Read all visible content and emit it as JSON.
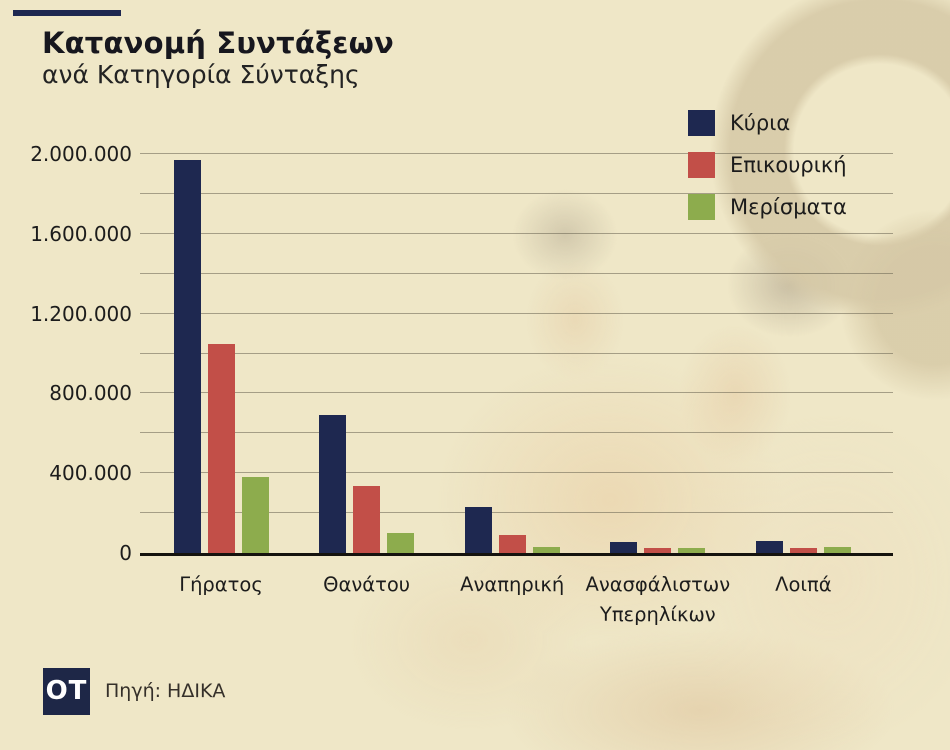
{
  "page": {
    "background_color": "#efe7c7",
    "accent_color": "#1e2850",
    "title": "Κατανομή Συντάξεων",
    "subtitle": "ανά Κατηγορία Σύνταξης"
  },
  "footer": {
    "logo_text": "OT",
    "logo_color": "#1e2747",
    "source_label": "Πηγή: ΗΔΙΚΑ"
  },
  "chart_data": {
    "type": "bar",
    "title": "Κατανομή Συντάξεων ανά Κατηγορία Σύνταξης",
    "categories": [
      "Γήρατος",
      "Θανάτου",
      "Αναπηρική",
      "Ανασφάλιστων Υπερηλίκων",
      "Λοιπά"
    ],
    "series": [
      {
        "name": "Κύρια",
        "color": "#1e2850",
        "values": [
          1970000,
          690000,
          230000,
          55000,
          60000
        ]
      },
      {
        "name": "Επικουρική",
        "color": "#c24f48",
        "values": [
          1050000,
          335000,
          90000,
          27000,
          27000
        ]
      },
      {
        "name": "Μερίσματα",
        "color": "#8dac4d",
        "values": [
          380000,
          100000,
          32000,
          24000,
          29000
        ]
      }
    ],
    "ylim": [
      0,
      2000000
    ],
    "y_tick_values": [
      0,
      400000,
      800000,
      1200000,
      1600000,
      2000000
    ],
    "y_ticks": [
      "0",
      "400.000",
      "800.000",
      "1.200.000",
      "1.600.000",
      "2.000.000"
    ],
    "gridline_step": 200000,
    "grid": true,
    "legend_position": "top-right",
    "xlabel": "",
    "ylabel": ""
  }
}
